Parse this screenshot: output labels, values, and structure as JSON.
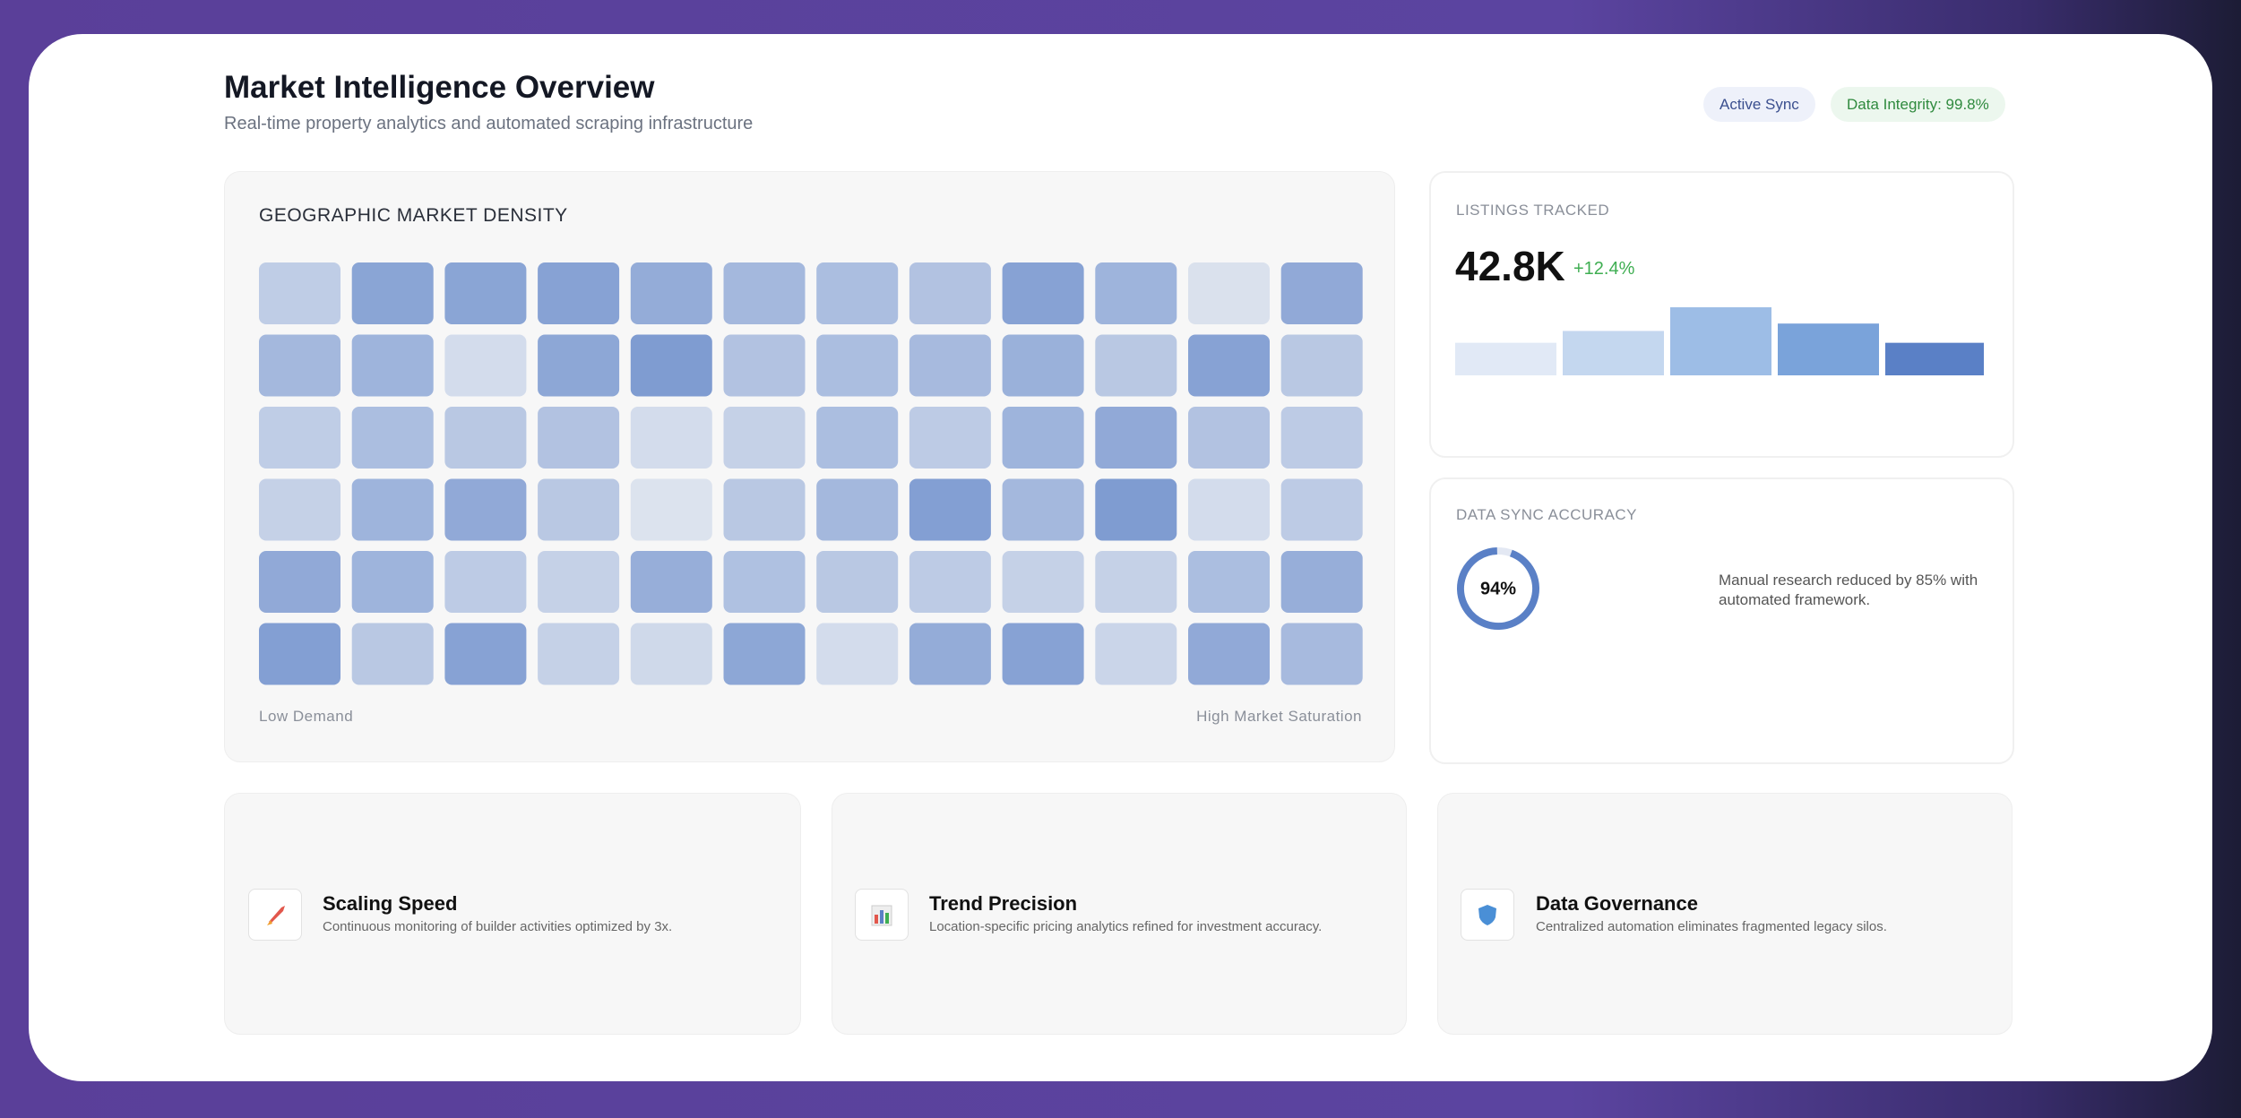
{
  "header": {
    "title": "Market Intelligence Overview",
    "subtitle": "Real-time property analytics and automated scraping infrastructure",
    "badges": [
      "Active Sync",
      "Data Integrity: 99.8%"
    ]
  },
  "heatmap": {
    "title": "GEOGRAPHIC MARKET DENSITY",
    "color": "#5a80c6",
    "range": [
      0,
      100
    ],
    "values": [
      [
        30,
        70,
        70,
        72,
        62,
        50,
        45,
        40,
        72,
        55,
        10,
        65
      ],
      [
        50,
        55,
        15,
        68,
        78,
        40,
        45,
        48,
        58,
        35,
        72,
        35
      ],
      [
        30,
        45,
        35,
        40,
        15,
        25,
        45,
        32,
        55,
        65,
        40,
        32
      ],
      [
        25,
        55,
        65,
        35,
        8,
        35,
        50,
        75,
        50,
        78,
        15,
        32
      ],
      [
        65,
        55,
        32,
        25,
        60,
        42,
        35,
        32,
        25,
        25,
        45,
        60
      ],
      [
        75,
        35,
        72,
        25,
        18,
        68,
        15,
        62,
        72,
        22,
        65,
        48
      ]
    ],
    "legend_low": "Low Demand",
    "legend_high": "High Market Saturation"
  },
  "listings": {
    "label": "LISTINGS TRACKED",
    "value": "42.8K",
    "change": "+12.4%",
    "ylim": [
      0,
      46
    ],
    "bars": [
      22,
      30,
      46,
      35,
      22
    ],
    "colors": [
      "#e1e9f6",
      "#c4d7ef",
      "#9dbde6",
      "#7aa3da",
      "#5a80c6"
    ]
  },
  "accuracy": {
    "label": "DATA SYNC ACCURACY",
    "value": {
      "value": 94,
      "label": "94%"
    },
    "color": "#5a80c6",
    "note": "Manual research reduced by 85% with automated framework."
  },
  "features": [
    {
      "title": "Scaling Speed",
      "description": "Continuous monitoring of builder activities optimized by 3x."
    },
    {
      "title": "Trend Precision",
      "description": "Location-specific pricing analytics refined for investment accuracy."
    },
    {
      "title": "Data Governance",
      "description": "Centralized automation eliminates fragmented legacy silos."
    }
  ]
}
